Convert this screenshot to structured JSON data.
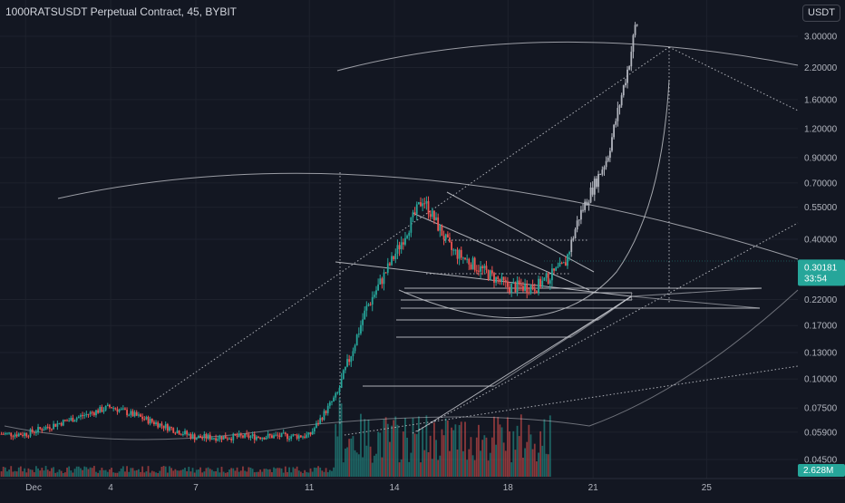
{
  "header": {
    "title": "1000RATSUSDT Perpetual Contract, 45, BYBIT",
    "unit": "USDT"
  },
  "chart_data": {
    "type": "candlestick",
    "symbol": "1000RATSUSDT",
    "timeframe": "45",
    "exchange": "BYBIT",
    "y_scale": "log",
    "y_ticks": [
      "3.00000",
      "2.20000",
      "1.60000",
      "1.20000",
      "0.90000",
      "0.70000",
      "0.55000",
      "0.40000",
      "0.22000",
      "0.17000",
      "0.13000",
      "0.10000",
      "0.07500",
      "0.05900",
      "0.04500"
    ],
    "x_ticks": [
      "Dec",
      "4",
      "7",
      "11",
      "14",
      "18",
      "21",
      "25"
    ],
    "last_price": "0.30181",
    "countdown": "33:54",
    "volume_label": "2.628M",
    "colors": {
      "background": "#131722",
      "up": "#26a69a",
      "down": "#ef5350",
      "up_recent": "#b2b5be",
      "drawing": "#c8cad0",
      "price_tag": "#26a69a",
      "grid": "#1e222d"
    },
    "price_path": [
      [
        "Dec",
        0.058
      ],
      [
        "4",
        0.076
      ],
      [
        "7",
        0.056
      ],
      [
        "11",
        0.057
      ],
      [
        "12",
        0.087
      ],
      [
        "13",
        0.2
      ],
      [
        "14",
        0.34
      ],
      [
        "15",
        0.6
      ],
      [
        "16",
        0.36
      ],
      [
        "18",
        0.25
      ],
      [
        "19",
        0.25
      ],
      [
        "20",
        0.31
      ],
      [
        "20.5",
        0.5
      ],
      [
        "21.5",
        0.9
      ],
      [
        "22.3",
        2.4
      ],
      [
        "22.5",
        3.4
      ]
    ]
  }
}
